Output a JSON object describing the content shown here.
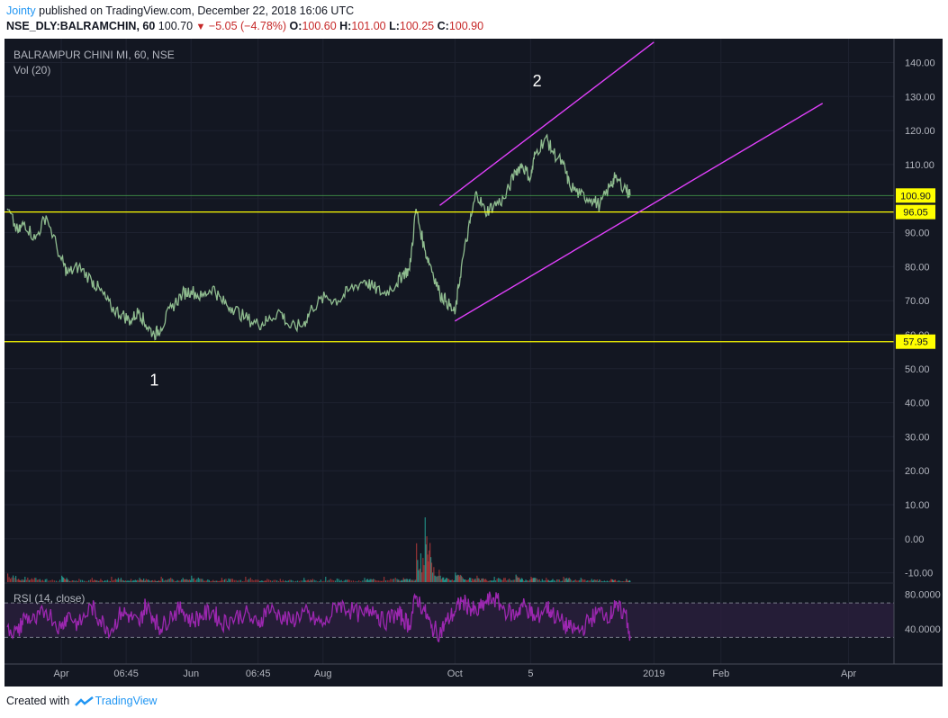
{
  "header": {
    "author": "Jointy",
    "published_text": "published on TradingView.com, December 22, 2018 16:06 UTC",
    "symbol": "NSE_DLY:BALRAMCHIN, 60",
    "last": "100.70",
    "change": "−5.05 (−4.78%)",
    "o_label": "O:",
    "o_value": "100.60",
    "h_label": "H:",
    "h_value": "101.00",
    "l_label": "L:",
    "l_value": "100.25",
    "c_label": "C:",
    "c_value": "100.90"
  },
  "chart": {
    "legend_title": "BALRAMPUR CHINI MI, 60, NSE",
    "legend_vol": "Vol (20)",
    "legend_rsi": "RSI (14, close)"
  },
  "footer": {
    "created_with": "Created with",
    "brand": "TradingView"
  },
  "colors": {
    "background": "#131722",
    "candle": "#8fbc8f",
    "horizontal_levels": "#ffff00",
    "trend_lines": "#e040fb",
    "rsi_line": "#9c27b0",
    "price_line": "#4caf50"
  },
  "chart_data": {
    "type": "line",
    "series": [
      {
        "x": [
          "2018-03-08",
          "2018-03-13",
          "2018-03-16",
          "2018-03-21",
          "2018-03-26",
          "2018-04-02",
          "2018-04-05",
          "2018-04-10",
          "2018-04-16",
          "2018-04-20",
          "2018-04-25",
          "2018-04-30",
          "2018-05-04",
          "2018-05-08",
          "2018-05-11",
          "2018-05-15",
          "2018-05-18",
          "2018-05-23",
          "2018-05-28",
          "2018-06-01",
          "2018-06-06",
          "2018-06-11",
          "2018-06-15",
          "2018-06-20",
          "2018-06-26",
          "2018-07-02",
          "2018-07-06",
          "2018-07-12",
          "2018-07-17",
          "2018-07-23",
          "2018-07-27",
          "2018-08-02",
          "2018-08-08",
          "2018-08-13",
          "2018-08-20",
          "2018-08-24",
          "2018-08-29",
          "2018-09-04",
          "2018-09-07",
          "2018-09-10",
          "2018-09-13",
          "2018-09-17",
          "2018-09-20",
          "2018-09-24",
          "2018-09-27",
          "2018-10-01",
          "2018-10-04",
          "2018-10-08",
          "2018-10-11",
          "2018-10-15",
          "2018-10-19",
          "2018-10-24",
          "2018-10-29",
          "2018-11-01",
          "2018-11-05",
          "2018-11-07",
          "2018-11-12",
          "2018-11-15",
          "2018-11-20",
          "2018-11-23",
          "2018-11-28",
          "2018-12-03",
          "2018-12-07",
          "2018-12-12",
          "2018-12-14",
          "2018-12-19",
          "2018-12-21"
        ],
        "values": [
          97,
          90,
          93,
          88,
          95,
          82,
          78,
          80,
          76,
          73,
          68,
          66,
          64,
          67,
          63,
          60,
          62,
          68,
          72,
          73,
          71,
          74,
          70,
          68,
          65,
          63,
          64,
          67,
          62,
          63,
          68,
          71,
          70,
          73,
          76,
          74,
          72,
          75,
          78,
          79,
          97,
          85,
          80,
          72,
          70,
          66,
          80,
          93,
          102,
          96,
          98,
          100,
          108,
          110,
          106,
          113,
          118,
          114,
          110,
          104,
          101,
          100,
          98,
          104,
          106,
          103,
          101
        ],
        "ylim": [
          -13,
          147
        ]
      }
    ],
    "x_tick_labels": [
      "Apr",
      "06:45",
      "Jun",
      "06:45",
      "Aug",
      "Oct",
      "5",
      "2019",
      "Feb",
      "Apr"
    ],
    "y_tick_labels": [
      "140.00",
      "130.00",
      "120.00",
      "110.00",
      "100.00",
      "90.00",
      "80.00",
      "70.00",
      "60.00",
      "50.00",
      "40.00",
      "30.00",
      "20.00",
      "10.00",
      "0.00",
      "-10.00"
    ],
    "horizontal_levels": [
      96.05,
      57.95
    ],
    "last_price": 100.9,
    "price_tags": [
      "100.90",
      "96.05",
      "57.95"
    ],
    "trend_lines": [
      {
        "from": [
          "2018-09-24",
          98
        ],
        "to": [
          "2019-01-01",
          146
        ]
      },
      {
        "from": [
          "2018-10-01",
          64
        ],
        "to": [
          "2019-03-20",
          128
        ]
      }
    ],
    "annotations": [
      "1",
      "2"
    ],
    "rsi": {
      "label": "RSI (14, close)",
      "upper_band": 70,
      "lower_band": 30,
      "tick_labels": [
        "80.0000",
        "40.0000"
      ],
      "values": [
        42,
        35,
        55,
        48,
        62,
        40,
        58,
        44,
        66,
        50,
        38,
        60,
        54,
        45,
        68,
        52,
        40,
        57,
        63,
        49,
        55,
        61,
        46,
        52,
        58,
        43,
        64,
        56,
        48,
        60,
        51,
        45,
        70,
        62,
        55,
        66,
        47,
        58,
        52,
        44,
        78,
        60,
        42,
        35,
        48,
        60,
        72,
        65,
        58,
        70,
        76,
        62,
        55,
        68,
        60,
        50,
        66,
        58,
        46,
        40,
        38,
        52,
        60,
        56,
        64,
        58,
        32
      ],
      "ylim": [
        0,
        90
      ]
    },
    "volume": {
      "label": "Vol (20)",
      "values": [
        8,
        3,
        5,
        4,
        3,
        6,
        2,
        3,
        4,
        3,
        5,
        2,
        3,
        4,
        3,
        2,
        5,
        3,
        4,
        6,
        3,
        2,
        4,
        3,
        5,
        2,
        3,
        3,
        2,
        4,
        3,
        5,
        3,
        2,
        4,
        3,
        5,
        3,
        4,
        3,
        36,
        60,
        18,
        6,
        4,
        9,
        5,
        4,
        6,
        3,
        5,
        4,
        7,
        3,
        5,
        4,
        4,
        3,
        5,
        3,
        4,
        3,
        2,
        3,
        2,
        3,
        2
      ],
      "max_visible": 60
    },
    "grid": true,
    "legend_placement": "top-left"
  }
}
